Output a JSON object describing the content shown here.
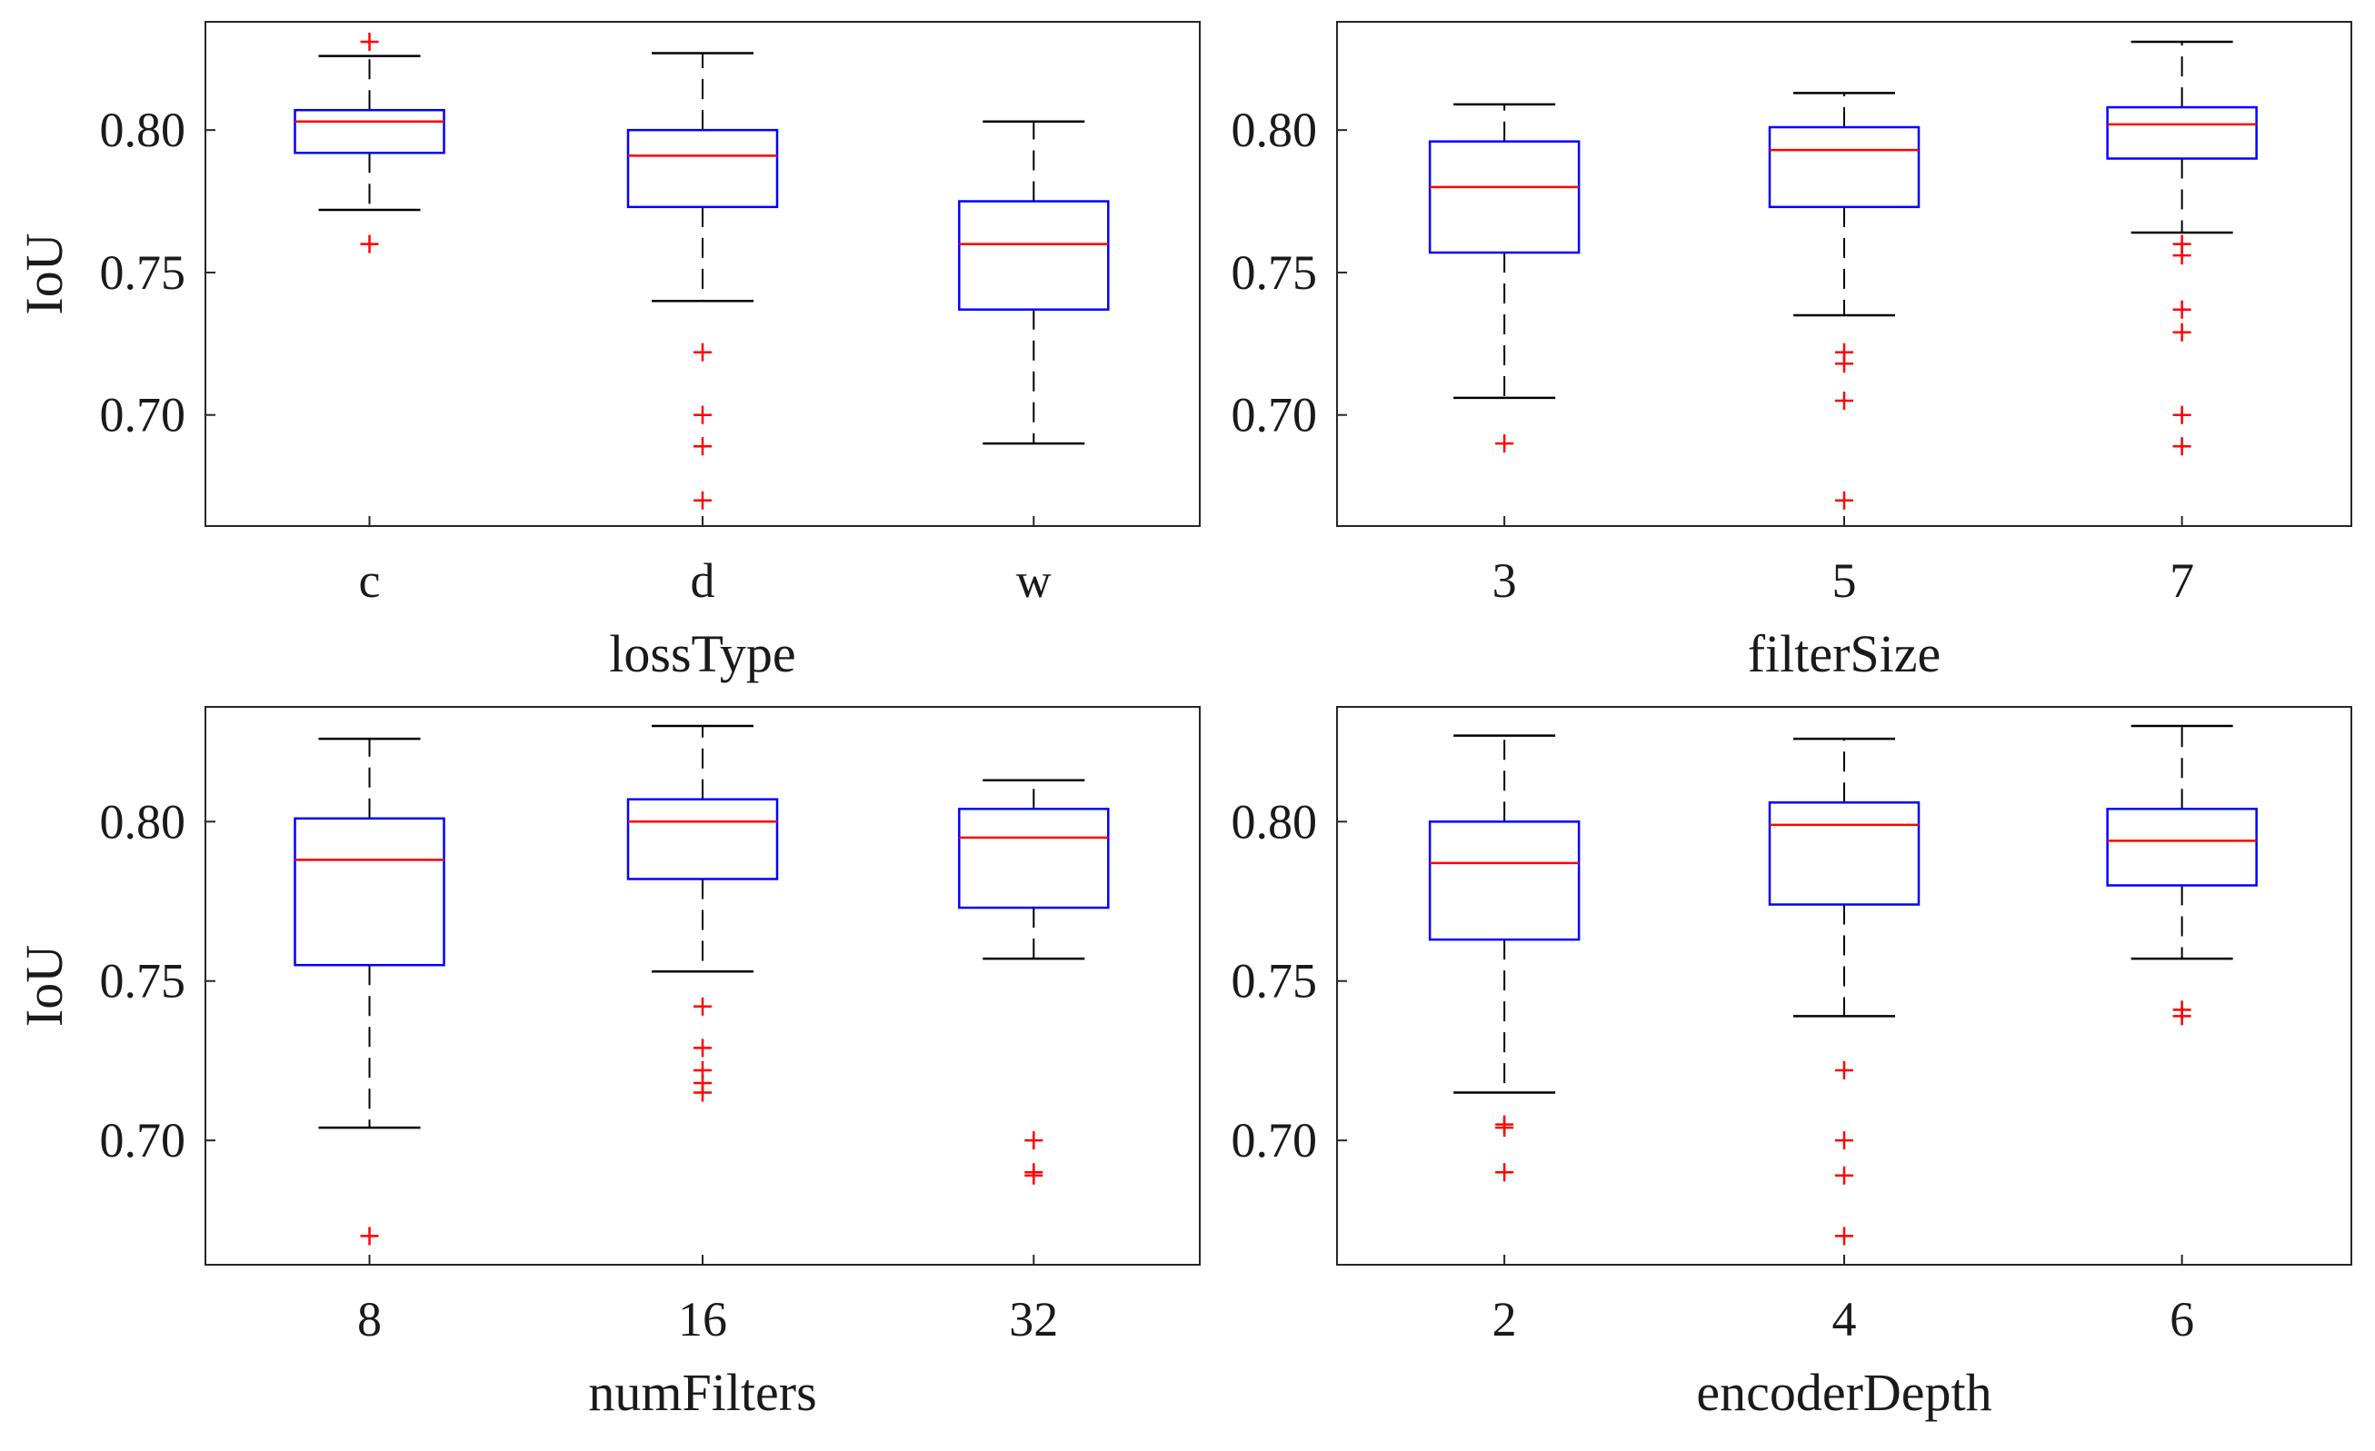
{
  "chart_data": [
    {
      "type": "boxplot",
      "panel": "top-left",
      "xlabel": "lossType",
      "ylabel": "IoU",
      "ylim": [
        0.661,
        0.838
      ],
      "yticks": [
        "0.70",
        "0.75",
        "0.80"
      ],
      "ytick_values": [
        0.7,
        0.75,
        0.8
      ],
      "categories": [
        "c",
        "d",
        "w"
      ],
      "boxes": [
        {
          "q1": 0.792,
          "median": 0.803,
          "q3": 0.807,
          "whisker_low": 0.772,
          "whisker_high": 0.826,
          "outliers": [
            0.76,
            0.831
          ]
        },
        {
          "q1": 0.773,
          "median": 0.791,
          "q3": 0.8,
          "whisker_low": 0.74,
          "whisker_high": 0.827,
          "outliers": [
            0.722,
            0.7,
            0.689,
            0.67
          ]
        },
        {
          "q1": 0.737,
          "median": 0.76,
          "q3": 0.775,
          "whisker_low": 0.69,
          "whisker_high": 0.803,
          "outliers": []
        }
      ]
    },
    {
      "type": "boxplot",
      "panel": "top-right",
      "xlabel": "filterSize",
      "ylabel": "",
      "ylim": [
        0.661,
        0.838
      ],
      "yticks": [
        "0.70",
        "0.75",
        "0.80"
      ],
      "ytick_values": [
        0.7,
        0.75,
        0.8
      ],
      "categories": [
        "3",
        "5",
        "7"
      ],
      "boxes": [
        {
          "q1": 0.757,
          "median": 0.78,
          "q3": 0.796,
          "whisker_low": 0.706,
          "whisker_high": 0.809,
          "outliers": [
            0.69
          ]
        },
        {
          "q1": 0.773,
          "median": 0.793,
          "q3": 0.801,
          "whisker_low": 0.735,
          "whisker_high": 0.813,
          "outliers": [
            0.722,
            0.718,
            0.705,
            0.67
          ]
        },
        {
          "q1": 0.79,
          "median": 0.802,
          "q3": 0.808,
          "whisker_low": 0.764,
          "whisker_high": 0.831,
          "outliers": [
            0.76,
            0.756,
            0.737,
            0.729,
            0.7,
            0.689
          ]
        }
      ]
    },
    {
      "type": "boxplot",
      "panel": "bottom-left",
      "xlabel": "numFilters",
      "ylabel": "IoU",
      "ylim": [
        0.661,
        0.836
      ],
      "yticks": [
        "0.70",
        "0.75",
        "0.80"
      ],
      "ytick_values": [
        0.7,
        0.75,
        0.8
      ],
      "categories": [
        "8",
        "16",
        "32"
      ],
      "boxes": [
        {
          "q1": 0.755,
          "median": 0.788,
          "q3": 0.801,
          "whisker_low": 0.704,
          "whisker_high": 0.826,
          "outliers": [
            0.67
          ]
        },
        {
          "q1": 0.782,
          "median": 0.8,
          "q3": 0.807,
          "whisker_low": 0.753,
          "whisker_high": 0.83,
          "outliers": [
            0.742,
            0.729,
            0.722,
            0.718,
            0.715
          ]
        },
        {
          "q1": 0.773,
          "median": 0.795,
          "q3": 0.804,
          "whisker_low": 0.757,
          "whisker_high": 0.813,
          "outliers": [
            0.7,
            0.69,
            0.689
          ]
        }
      ]
    },
    {
      "type": "boxplot",
      "panel": "bottom-right",
      "xlabel": "encoderDepth",
      "ylabel": "",
      "ylim": [
        0.661,
        0.836
      ],
      "yticks": [
        "0.70",
        "0.75",
        "0.80"
      ],
      "ytick_values": [
        0.7,
        0.75,
        0.8
      ],
      "categories": [
        "2",
        "4",
        "6"
      ],
      "boxes": [
        {
          "q1": 0.763,
          "median": 0.787,
          "q3": 0.8,
          "whisker_low": 0.715,
          "whisker_high": 0.827,
          "outliers": [
            0.705,
            0.704,
            0.69
          ]
        },
        {
          "q1": 0.774,
          "median": 0.799,
          "q3": 0.806,
          "whisker_low": 0.739,
          "whisker_high": 0.826,
          "outliers": [
            0.722,
            0.7,
            0.689,
            0.67
          ]
        },
        {
          "q1": 0.78,
          "median": 0.794,
          "q3": 0.804,
          "whisker_low": 0.757,
          "whisker_high": 0.83,
          "outliers": [
            0.741,
            0.739
          ]
        }
      ]
    }
  ],
  "colors": {
    "box": "#0000ff",
    "median": "#ff0000",
    "outlier": "#ff0000",
    "whisker": "#000000",
    "axes": "#262626"
  }
}
